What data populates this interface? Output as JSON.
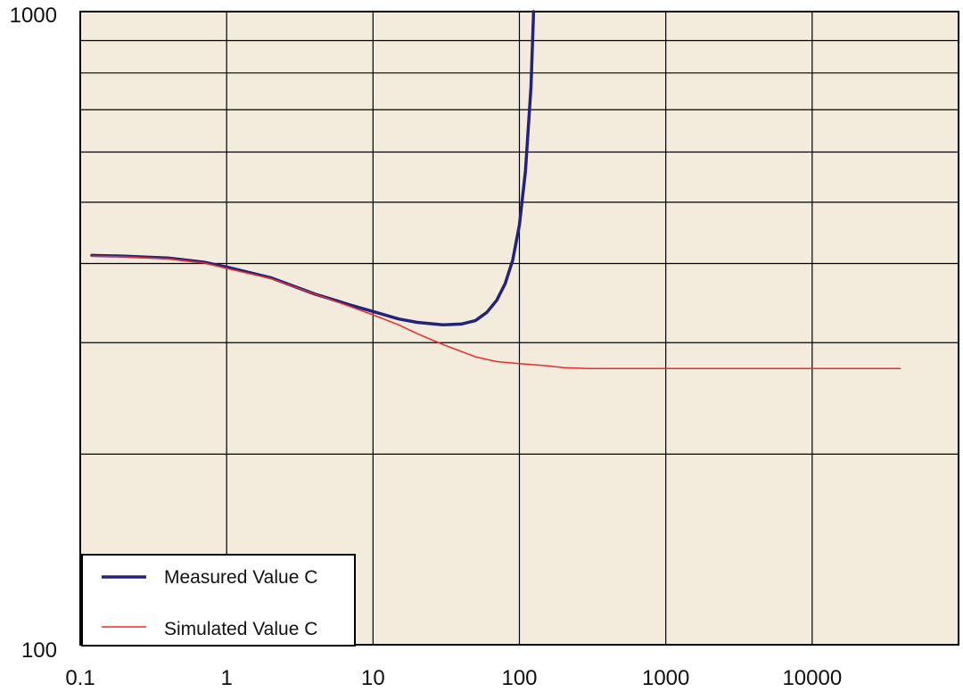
{
  "chart_data": {
    "type": "line",
    "xscale": "log",
    "yscale": "log",
    "xlim": [
      0.1,
      100000
    ],
    "ylim": [
      100,
      1000
    ],
    "grid": true,
    "legend_position": "bottom-left",
    "colors": {
      "background": "#f3ecdc",
      "grid": "#000000",
      "measured": "#23237a",
      "simulated": "#ee2a2a"
    },
    "x_tick_labels": [
      "0.1",
      "1",
      "10",
      "100",
      "1000",
      "10000"
    ],
    "y_tick_labels": [
      "1000",
      "100"
    ],
    "series": [
      {
        "name": "Measured Value C",
        "x": [
          0.12,
          0.2,
          0.4,
          0.7,
          1,
          2,
          4,
          7,
          10,
          15,
          20,
          30,
          40,
          50,
          60,
          70,
          80,
          90,
          100,
          110,
          120,
          125
        ],
        "y": [
          412,
          411,
          408,
          402,
          395,
          380,
          358,
          344,
          336,
          327,
          323,
          320,
          321,
          325,
          335,
          350,
          372,
          405,
          460,
          560,
          760,
          1000
        ]
      },
      {
        "name": "Simulated Value C",
        "x": [
          0.12,
          0.2,
          0.4,
          0.7,
          1,
          2,
          4,
          7,
          10,
          15,
          20,
          30,
          50,
          70,
          100,
          150,
          200,
          300,
          500,
          1000,
          5000,
          10000,
          40000
        ],
        "y": [
          411,
          410,
          407,
          401,
          393,
          379,
          358,
          342,
          332,
          320,
          310,
          298,
          285,
          280,
          278,
          276,
          274,
          273,
          273,
          273,
          273,
          273,
          273
        ]
      }
    ]
  }
}
